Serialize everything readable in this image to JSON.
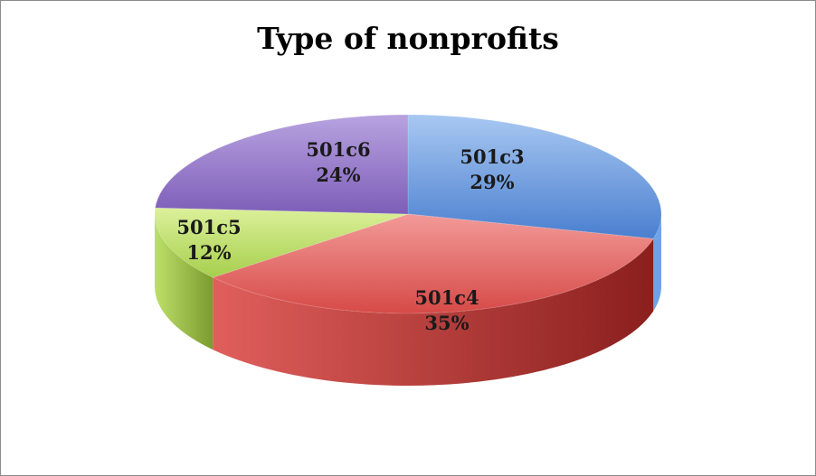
{
  "chart_data": {
    "type": "pie",
    "title": "Type of nonprofits",
    "slices": [
      {
        "label": "501c3",
        "value": 29,
        "percent_label": "29%",
        "color": "#6fa3e6"
      },
      {
        "label": "501c4",
        "value": 35,
        "percent_label": "35%",
        "color": "#e05f5c"
      },
      {
        "label": "501c5",
        "value": 12,
        "percent_label": "12%",
        "color": "#bde06a"
      },
      {
        "label": "501c6",
        "value": 24,
        "percent_label": "24%",
        "color": "#8d72c2"
      }
    ]
  },
  "colors": {
    "501c3": {
      "light": "#a8c8f2",
      "dark": "#4a7fcf"
    },
    "501c4": {
      "light": "#f29a98",
      "dark": "#d64a47",
      "side": "#8a1f1d"
    },
    "501c5": {
      "light": "#dcf09a",
      "dark": "#a6cf4d",
      "side": "#7c9a2e"
    },
    "501c6": {
      "light": "#b8a3e0",
      "dark": "#7d5eb8"
    }
  }
}
